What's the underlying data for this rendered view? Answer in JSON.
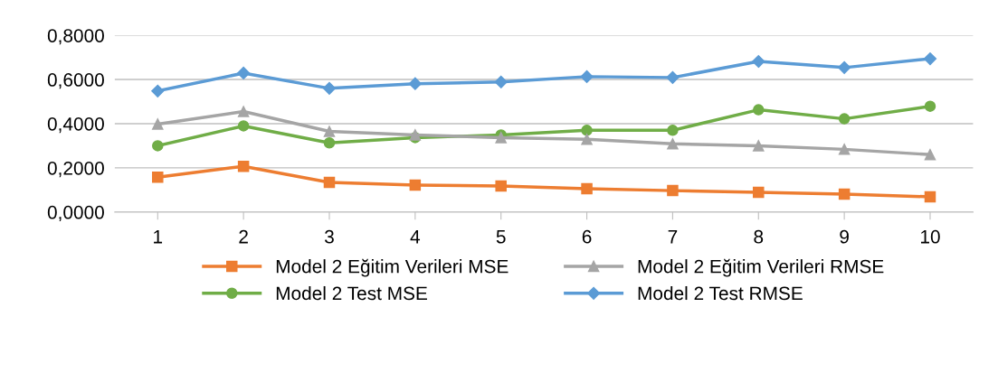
{
  "chart_data": {
    "type": "line",
    "categories": [
      "1",
      "2",
      "3",
      "4",
      "5",
      "6",
      "7",
      "8",
      "9",
      "10"
    ],
    "ylim": [
      0,
      0.8
    ],
    "yticks": [
      {
        "value": 0,
        "label": "0,0000"
      },
      {
        "value": 0.2,
        "label": "0,2000"
      },
      {
        "value": 0.4,
        "label": "0,4000"
      },
      {
        "value": 0.6,
        "label": "0,6000"
      },
      {
        "value": 0.8,
        "label": "0,8000"
      }
    ],
    "grid": "y",
    "legend": "bottom",
    "line_style": "solid",
    "series": [
      {
        "name": "Model 2 Eğitim Verileri MSE",
        "color": "#ed7d31",
        "marker": "square",
        "values": [
          0.158,
          0.207,
          0.134,
          0.122,
          0.118,
          0.106,
          0.097,
          0.089,
          0.081,
          0.069
        ]
      },
      {
        "name": "Model 2 Eğitim Verileri RMSE",
        "color": "#a5a5a5",
        "marker": "triangle",
        "values": [
          0.398,
          0.455,
          0.365,
          0.349,
          0.337,
          0.329,
          0.309,
          0.3,
          0.284,
          0.26
        ]
      },
      {
        "name": "Model 2 Test MSE",
        "color": "#70ad47",
        "marker": "circle",
        "values": [
          0.3,
          0.39,
          0.313,
          0.337,
          0.349,
          0.37,
          0.37,
          0.463,
          0.422,
          0.479
        ]
      },
      {
        "name": "Model 2 Test RMSE",
        "color": "#5b9bd5",
        "marker": "diamond",
        "values": [
          0.548,
          0.629,
          0.56,
          0.581,
          0.589,
          0.613,
          0.609,
          0.682,
          0.654,
          0.694
        ]
      }
    ]
  }
}
